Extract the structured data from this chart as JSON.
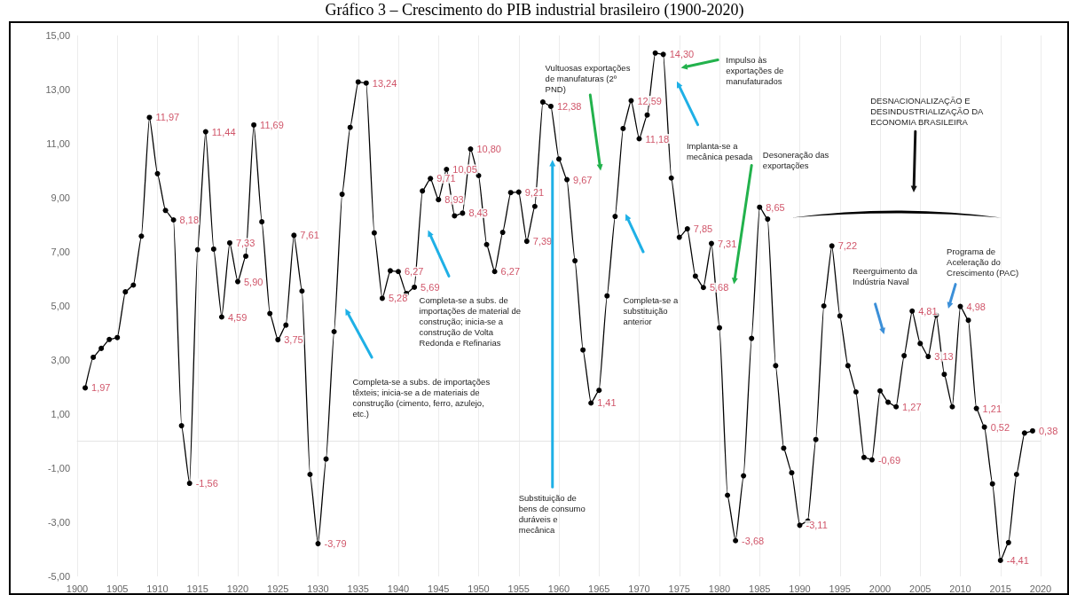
{
  "chart_data": {
    "type": "line",
    "title": "Gráfico 3 – Crescimento do PIB industrial brasileiro (1900-2020)",
    "x": [
      1901,
      1902,
      1903,
      1904,
      1905,
      1906,
      1907,
      1908,
      1909,
      1910,
      1911,
      1912,
      1913,
      1914,
      1915,
      1916,
      1917,
      1918,
      1919,
      1920,
      1921,
      1922,
      1923,
      1924,
      1925,
      1926,
      1927,
      1928,
      1929,
      1930,
      1931,
      1932,
      1933,
      1934,
      1935,
      1936,
      1937,
      1938,
      1939,
      1940,
      1941,
      1942,
      1943,
      1944,
      1945,
      1946,
      1947,
      1948,
      1949,
      1950,
      1951,
      1952,
      1953,
      1954,
      1955,
      1956,
      1957,
      1958,
      1959,
      1960,
      1961,
      1962,
      1963,
      1964,
      1965,
      1966,
      1967,
      1968,
      1969,
      1970,
      1971,
      1972,
      1973,
      1974,
      1975,
      1976,
      1977,
      1978,
      1979,
      1980,
      1981,
      1982,
      1983,
      1984,
      1985,
      1986,
      1987,
      1988,
      1989,
      1990,
      1991,
      1992,
      1993,
      1994,
      1995,
      1996,
      1997,
      1998,
      1999,
      2000,
      2001,
      2002,
      2003,
      2004,
      2005,
      2006,
      2007,
      2008,
      2009,
      2010,
      2011,
      2012,
      2013,
      2014,
      2015,
      2016,
      2017,
      2018,
      2019
    ],
    "values": [
      1.97,
      3.1,
      3.43,
      3.76,
      3.83,
      5.52,
      5.77,
      7.58,
      11.97,
      9.89,
      8.53,
      8.18,
      0.57,
      -1.56,
      7.08,
      11.44,
      7.1,
      4.59,
      7.33,
      5.9,
      6.84,
      11.69,
      8.11,
      4.72,
      3.75,
      4.29,
      7.61,
      5.55,
      -1.23,
      -3.79,
      -0.66,
      4.05,
      9.13,
      11.6,
      13.28,
      13.24,
      7.7,
      5.28,
      6.3,
      6.27,
      5.46,
      5.69,
      9.25,
      9.71,
      8.93,
      10.05,
      8.33,
      8.43,
      10.8,
      9.82,
      7.27,
      6.27,
      7.72,
      9.19,
      9.21,
      7.39,
      8.68,
      12.54,
      12.38,
      10.43,
      9.67,
      6.67,
      3.37,
      1.41,
      1.88,
      5.37,
      8.31,
      11.56,
      12.59,
      11.18,
      12.06,
      14.35,
      14.3,
      9.73,
      7.54,
      7.85,
      6.1,
      5.68,
      7.31,
      4.19,
      -2.0,
      -3.68,
      -1.28,
      3.8,
      8.65,
      8.21,
      2.79,
      -0.26,
      -1.17,
      -3.11,
      -2.95,
      0.06,
      5.0,
      7.22,
      4.63,
      2.79,
      1.82,
      -0.6,
      -0.69,
      1.86,
      1.44,
      1.27,
      3.16,
      4.81,
      3.61,
      3.13,
      4.66,
      2.47,
      1.27,
      4.98,
      4.47,
      1.21,
      0.52,
      -1.58,
      -4.41,
      -3.75,
      -1.23,
      0.3,
      0.38
    ],
    "value_labels": [
      "1,97",
      null,
      null,
      null,
      null,
      null,
      null,
      null,
      "11,97",
      null,
      null,
      "8,18",
      null,
      "-1,56",
      null,
      "11,44",
      null,
      "4,59",
      "7,33",
      "5,90",
      null,
      "11,69",
      null,
      null,
      "3,75",
      null,
      "7,61",
      null,
      null,
      "-3,79",
      null,
      null,
      null,
      null,
      null,
      "13,24",
      null,
      "5,28",
      null,
      "6,27",
      null,
      "5,69",
      null,
      "9,71",
      "8,93",
      "10,05",
      null,
      "8,43",
      "10,80",
      null,
      null,
      "6,27",
      null,
      null,
      "9,21",
      "7,39",
      null,
      null,
      "12,38",
      null,
      "9,67",
      null,
      null,
      "1,41",
      null,
      null,
      null,
      null,
      "12,59",
      "11,18",
      null,
      null,
      "14,30",
      null,
      null,
      "7,85",
      null,
      "5,68",
      "7,31",
      null,
      null,
      "-3,68",
      null,
      null,
      "8,65",
      null,
      null,
      null,
      null,
      "-3,11",
      null,
      null,
      null,
      "7,22",
      null,
      null,
      null,
      null,
      "-0,69",
      null,
      null,
      "1,27",
      null,
      "4,81",
      null,
      "3,13",
      null,
      null,
      null,
      "4,98",
      null,
      "1,21",
      "0,52",
      null,
      "-4,41",
      null,
      null,
      null,
      "0,38"
    ],
    "color": "#000000",
    "marker": "circle",
    "grid": "x",
    "xlim": [
      1900,
      2020
    ],
    "xticks": [
      1900,
      1905,
      1910,
      1915,
      1920,
      1925,
      1930,
      1935,
      1940,
      1945,
      1950,
      1955,
      1960,
      1965,
      1970,
      1975,
      1980,
      1985,
      1990,
      1995,
      2000,
      2005,
      2010,
      2015,
      2020
    ],
    "ylim": [
      -5,
      15
    ],
    "yticks": [
      {
        "value": -5,
        "label": "-5,00"
      },
      {
        "value": -3,
        "label": "-3,00"
      },
      {
        "value": -1,
        "label": "-1,00"
      },
      {
        "value": 1,
        "label": "1,00"
      },
      {
        "value": 3,
        "label": "3,00"
      },
      {
        "value": 5,
        "label": "5,00"
      },
      {
        "value": 7,
        "label": "7,00"
      },
      {
        "value": 9,
        "label": "9,00"
      },
      {
        "value": 11,
        "label": "11,00"
      },
      {
        "value": 13,
        "label": "13,00"
      },
      {
        "value": 15,
        "label": "15,00"
      }
    ],
    "annotations": [
      "Completa-se a subs. de importações têxteis; inicia-se a de materiais de construção (cimento, ferro, azulejo, etc.)",
      "Completa-se a subs. de importações de material de construção; inicia-se a construção de Volta Redonda e Refinarias",
      "Substituição de bens de consumo duráveis e mecânica",
      "Vultuosas exportações de manufaturas (2º PND)",
      "Completa-se a substituição anterior",
      "Implanta-se a mecânica pesada",
      "Impulso às exportações de manufaturados",
      "Desoneração das exportações",
      "DESNACIONALIZAÇÃO E DESINDUSTRIALIZAÇÃO DA ECONOMIA BRASILEIRA",
      "Reerguimento da Indústria Naval",
      "Programa de Aceleração do Crescimento (PAC)"
    ]
  }
}
